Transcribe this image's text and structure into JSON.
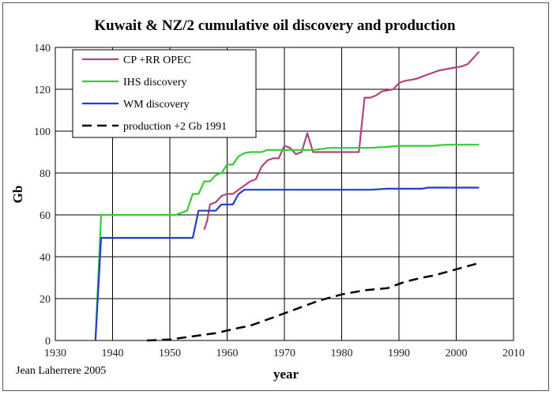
{
  "chart_data": {
    "type": "line",
    "title": "Kuwait & NZ/2 cumulative oil discovery and production",
    "xlabel": "year",
    "ylabel": "Gb",
    "credit": "Jean Laherrere 2005",
    "xlim": [
      1930,
      2010
    ],
    "ylim": [
      0,
      140
    ],
    "xticks": [
      1930,
      1940,
      1950,
      1960,
      1970,
      1980,
      1990,
      2000,
      2010
    ],
    "yticks": [
      0,
      20,
      40,
      60,
      80,
      100,
      120,
      140
    ],
    "grid": true,
    "legend_position": "top-left",
    "series": [
      {
        "name": "CP +RR OPEC",
        "color": "#b0447e",
        "dash": "solid",
        "points": [
          [
            1956,
            53
          ],
          [
            1956.5,
            57
          ],
          [
            1957,
            65
          ],
          [
            1958,
            66
          ],
          [
            1959,
            69
          ],
          [
            1960,
            70
          ],
          [
            1961,
            70
          ],
          [
            1962,
            72
          ],
          [
            1963,
            74
          ],
          [
            1964,
            76
          ],
          [
            1965,
            77
          ],
          [
            1966,
            83
          ],
          [
            1967,
            86
          ],
          [
            1968,
            87
          ],
          [
            1969,
            87
          ],
          [
            1970,
            93
          ],
          [
            1971,
            92
          ],
          [
            1972,
            89
          ],
          [
            1973,
            90
          ],
          [
            1974,
            99
          ],
          [
            1975,
            90
          ],
          [
            1976,
            90
          ],
          [
            1978,
            90
          ],
          [
            1980,
            90
          ],
          [
            1983,
            90
          ],
          [
            1984,
            116
          ],
          [
            1985,
            116
          ],
          [
            1986,
            117
          ],
          [
            1987,
            119
          ],
          [
            1989,
            120
          ],
          [
            1990,
            123
          ],
          [
            1991,
            124
          ],
          [
            1993,
            125
          ],
          [
            1995,
            127
          ],
          [
            1997,
            129
          ],
          [
            1999,
            130
          ],
          [
            2001,
            131
          ],
          [
            2002,
            132
          ],
          [
            2003,
            135
          ],
          [
            2004,
            138
          ]
        ]
      },
      {
        "name": "IHS discovery",
        "color": "#33cc33",
        "dash": "solid",
        "points": [
          [
            1937,
            0
          ],
          [
            1938,
            60
          ],
          [
            1951,
            60
          ],
          [
            1952,
            61
          ],
          [
            1953,
            62
          ],
          [
            1954,
            70
          ],
          [
            1955,
            70
          ],
          [
            1956,
            76
          ],
          [
            1957,
            76
          ],
          [
            1958,
            79
          ],
          [
            1959,
            80
          ],
          [
            1960,
            84
          ],
          [
            1961,
            84
          ],
          [
            1962,
            88
          ],
          [
            1963,
            89.5
          ],
          [
            1964,
            90
          ],
          [
            1966,
            90
          ],
          [
            1967,
            91
          ],
          [
            1970,
            91
          ],
          [
            1975,
            91
          ],
          [
            1978,
            92
          ],
          [
            1985,
            92
          ],
          [
            1988,
            92.5
          ],
          [
            1990,
            93
          ],
          [
            1996,
            93
          ],
          [
            1998,
            93.5
          ],
          [
            2004,
            93.5
          ]
        ]
      },
      {
        "name": "WM discovery",
        "color": "#1f3fcc",
        "dash": "solid",
        "points": [
          [
            1937,
            0
          ],
          [
            1938,
            49
          ],
          [
            1954,
            49
          ],
          [
            1955,
            62
          ],
          [
            1958,
            62
          ],
          [
            1959,
            65
          ],
          [
            1961,
            65
          ],
          [
            1962,
            70
          ],
          [
            1963,
            72
          ],
          [
            1970,
            72
          ],
          [
            1985,
            72
          ],
          [
            1988,
            72.5
          ],
          [
            1994,
            72.5
          ],
          [
            1995,
            73
          ],
          [
            2004,
            73
          ]
        ]
      },
      {
        "name": "production +2 Gb 1991",
        "color": "#000000",
        "dash": "dashed",
        "points": [
          [
            1946,
            0
          ],
          [
            1950,
            0.5
          ],
          [
            1954,
            2
          ],
          [
            1958,
            3.5
          ],
          [
            1962,
            6
          ],
          [
            1964,
            7
          ],
          [
            1968,
            11
          ],
          [
            1972,
            15
          ],
          [
            1976,
            19
          ],
          [
            1980,
            22
          ],
          [
            1984,
            24
          ],
          [
            1988,
            25
          ],
          [
            1991,
            28
          ],
          [
            1994,
            30
          ],
          [
            1996,
            31
          ],
          [
            2000,
            34
          ],
          [
            2004,
            37
          ]
        ]
      }
    ]
  }
}
